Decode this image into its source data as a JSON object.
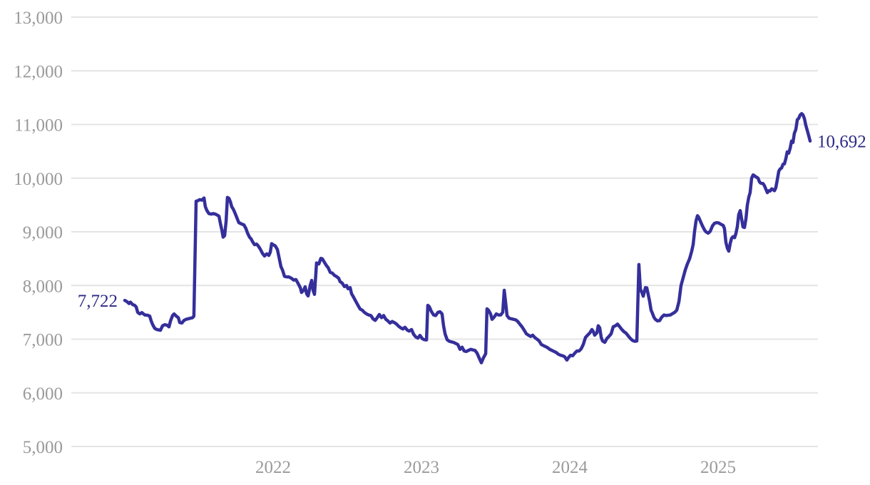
{
  "chart_data": {
    "type": "line",
    "title": "",
    "xlabel": "",
    "ylabel": "",
    "grid": true,
    "legend": "none",
    "line_color": "#352f9b",
    "annotation_color": "#2d2a86",
    "axis_text_color": "#9a9a9a",
    "gridline_color": "#e4e4e4",
    "start_label": "7,722",
    "end_label": "10,692",
    "start_value": 7722,
    "end_value": 10692,
    "y_domain": [
      5000,
      13000
    ],
    "y_ticks": [
      5000,
      6000,
      7000,
      8000,
      9000,
      10000,
      11000,
      12000,
      13000
    ],
    "y_tick_labels": [
      "5,000",
      "6,000",
      "7,000",
      "8,000",
      "9,000",
      "10,000",
      "11,000",
      "12,000",
      "13,000"
    ],
    "x_ticks": [
      2022,
      2023,
      2024,
      2025
    ],
    "x_tick_labels": [
      "2022",
      "2023",
      "2024",
      "2025"
    ],
    "x_domain": [
      2021.0,
      2025.62
    ],
    "points": [
      [
        2021.0,
        7722
      ],
      [
        2021.014,
        7700
      ],
      [
        2021.029,
        7665
      ],
      [
        2021.038,
        7690
      ],
      [
        2021.053,
        7645
      ],
      [
        2021.067,
        7630
      ],
      [
        2021.077,
        7600
      ],
      [
        2021.087,
        7500
      ],
      [
        2021.101,
        7470
      ],
      [
        2021.115,
        7495
      ],
      [
        2021.135,
        7450
      ],
      [
        2021.154,
        7445
      ],
      [
        2021.168,
        7430
      ],
      [
        2021.178,
        7340
      ],
      [
        2021.188,
        7270
      ],
      [
        2021.202,
        7200
      ],
      [
        2021.216,
        7180
      ],
      [
        2021.24,
        7165
      ],
      [
        2021.255,
        7250
      ],
      [
        2021.269,
        7270
      ],
      [
        2021.284,
        7260
      ],
      [
        2021.298,
        7230
      ],
      [
        2021.308,
        7340
      ],
      [
        2021.322,
        7440
      ],
      [
        2021.332,
        7470
      ],
      [
        2021.346,
        7430
      ],
      [
        2021.361,
        7400
      ],
      [
        2021.37,
        7310
      ],
      [
        2021.385,
        7300
      ],
      [
        2021.399,
        7350
      ],
      [
        2021.413,
        7370
      ],
      [
        2021.428,
        7380
      ],
      [
        2021.442,
        7390
      ],
      [
        2021.457,
        7400
      ],
      [
        2021.466,
        7430
      ],
      [
        2021.481,
        9570
      ],
      [
        2021.49,
        9575
      ],
      [
        2021.505,
        9600
      ],
      [
        2021.519,
        9590
      ],
      [
        2021.534,
        9630
      ],
      [
        2021.543,
        9470
      ],
      [
        2021.553,
        9400
      ],
      [
        2021.567,
        9340
      ],
      [
        2021.582,
        9330
      ],
      [
        2021.596,
        9340
      ],
      [
        2021.611,
        9330
      ],
      [
        2021.625,
        9310
      ],
      [
        2021.635,
        9290
      ],
      [
        2021.644,
        9160
      ],
      [
        2021.654,
        9040
      ],
      [
        2021.663,
        8900
      ],
      [
        2021.673,
        8930
      ],
      [
        2021.683,
        9200
      ],
      [
        2021.692,
        9640
      ],
      [
        2021.702,
        9625
      ],
      [
        2021.712,
        9560
      ],
      [
        2021.721,
        9465
      ],
      [
        2021.731,
        9425
      ],
      [
        2021.74,
        9370
      ],
      [
        2021.75,
        9300
      ],
      [
        2021.76,
        9230
      ],
      [
        2021.769,
        9170
      ],
      [
        2021.784,
        9150
      ],
      [
        2021.793,
        9140
      ],
      [
        2021.803,
        9130
      ],
      [
        2021.817,
        9060
      ],
      [
        2021.827,
        8980
      ],
      [
        2021.841,
        8900
      ],
      [
        2021.851,
        8870
      ],
      [
        2021.865,
        8800
      ],
      [
        2021.875,
        8760
      ],
      [
        2021.889,
        8770
      ],
      [
        2021.899,
        8740
      ],
      [
        2021.913,
        8680
      ],
      [
        2021.928,
        8600
      ],
      [
        2021.942,
        8550
      ],
      [
        2021.957,
        8590
      ],
      [
        2021.971,
        8560
      ],
      [
        2021.981,
        8620
      ],
      [
        2021.99,
        8780
      ],
      [
        2022.0,
        8760
      ],
      [
        2022.014,
        8740
      ],
      [
        2022.029,
        8670
      ],
      [
        2022.038,
        8550
      ],
      [
        2022.053,
        8350
      ],
      [
        2022.063,
        8290
      ],
      [
        2022.077,
        8170
      ],
      [
        2022.091,
        8160
      ],
      [
        2022.106,
        8160
      ],
      [
        2022.12,
        8140
      ],
      [
        2022.139,
        8100
      ],
      [
        2022.154,
        8110
      ],
      [
        2022.168,
        8040
      ],
      [
        2022.183,
        7960
      ],
      [
        2022.192,
        7870
      ],
      [
        2022.207,
        7920
      ],
      [
        2022.216,
        7975
      ],
      [
        2022.226,
        7845
      ],
      [
        2022.236,
        7805
      ],
      [
        2022.25,
        8000
      ],
      [
        2022.26,
        8095
      ],
      [
        2022.269,
        7910
      ],
      [
        2022.279,
        7835
      ],
      [
        2022.293,
        8420
      ],
      [
        2022.308,
        8400
      ],
      [
        2022.322,
        8505
      ],
      [
        2022.332,
        8495
      ],
      [
        2022.346,
        8430
      ],
      [
        2022.361,
        8365
      ],
      [
        2022.37,
        8335
      ],
      [
        2022.385,
        8245
      ],
      [
        2022.399,
        8230
      ],
      [
        2022.413,
        8190
      ],
      [
        2022.428,
        8165
      ],
      [
        2022.442,
        8135
      ],
      [
        2022.452,
        8070
      ],
      [
        2022.466,
        8045
      ],
      [
        2022.481,
        7980
      ],
      [
        2022.495,
        8000
      ],
      [
        2022.505,
        7940
      ],
      [
        2022.519,
        7960
      ],
      [
        2022.529,
        7845
      ],
      [
        2022.543,
        7780
      ],
      [
        2022.558,
        7700
      ],
      [
        2022.572,
        7630
      ],
      [
        2022.587,
        7560
      ],
      [
        2022.601,
        7540
      ],
      [
        2022.615,
        7500
      ],
      [
        2022.63,
        7470
      ],
      [
        2022.644,
        7450
      ],
      [
        2022.659,
        7440
      ],
      [
        2022.673,
        7380
      ],
      [
        2022.688,
        7350
      ],
      [
        2022.702,
        7400
      ],
      [
        2022.716,
        7460
      ],
      [
        2022.731,
        7400
      ],
      [
        2022.745,
        7440
      ],
      [
        2022.76,
        7370
      ],
      [
        2022.774,
        7340
      ],
      [
        2022.788,
        7300
      ],
      [
        2022.803,
        7330
      ],
      [
        2022.817,
        7310
      ],
      [
        2022.832,
        7280
      ],
      [
        2022.846,
        7240
      ],
      [
        2022.861,
        7210
      ],
      [
        2022.875,
        7190
      ],
      [
        2022.889,
        7220
      ],
      [
        2022.904,
        7170
      ],
      [
        2022.918,
        7150
      ],
      [
        2022.933,
        7180
      ],
      [
        2022.947,
        7090
      ],
      [
        2022.962,
        7040
      ],
      [
        2022.976,
        7020
      ],
      [
        2022.99,
        7070
      ],
      [
        2023.005,
        7010
      ],
      [
        2023.019,
        6990
      ],
      [
        2023.034,
        6985
      ],
      [
        2023.043,
        7630
      ],
      [
        2023.053,
        7605
      ],
      [
        2023.067,
        7515
      ],
      [
        2023.082,
        7450
      ],
      [
        2023.096,
        7440
      ],
      [
        2023.111,
        7500
      ],
      [
        2023.125,
        7510
      ],
      [
        2023.139,
        7470
      ],
      [
        2023.149,
        7250
      ],
      [
        2023.159,
        7100
      ],
      [
        2023.173,
        6990
      ],
      [
        2023.188,
        6960
      ],
      [
        2023.202,
        6950
      ],
      [
        2023.216,
        6940
      ],
      [
        2023.231,
        6920
      ],
      [
        2023.245,
        6900
      ],
      [
        2023.26,
        6810
      ],
      [
        2023.274,
        6850
      ],
      [
        2023.288,
        6780
      ],
      [
        2023.303,
        6770
      ],
      [
        2023.317,
        6790
      ],
      [
        2023.332,
        6810
      ],
      [
        2023.346,
        6800
      ],
      [
        2023.361,
        6790
      ],
      [
        2023.375,
        6740
      ],
      [
        2023.389,
        6650
      ],
      [
        2023.404,
        6560
      ],
      [
        2023.418,
        6650
      ],
      [
        2023.433,
        6730
      ],
      [
        2023.442,
        7565
      ],
      [
        2023.452,
        7540
      ],
      [
        2023.466,
        7470
      ],
      [
        2023.476,
        7370
      ],
      [
        2023.49,
        7410
      ],
      [
        2023.505,
        7470
      ],
      [
        2023.519,
        7450
      ],
      [
        2023.534,
        7450
      ],
      [
        2023.548,
        7500
      ],
      [
        2023.558,
        7910
      ],
      [
        2023.567,
        7700
      ],
      [
        2023.577,
        7440
      ],
      [
        2023.591,
        7390
      ],
      [
        2023.606,
        7380
      ],
      [
        2023.62,
        7370
      ],
      [
        2023.635,
        7360
      ],
      [
        2023.649,
        7330
      ],
      [
        2023.663,
        7280
      ],
      [
        2023.678,
        7230
      ],
      [
        2023.692,
        7170
      ],
      [
        2023.707,
        7100
      ],
      [
        2023.721,
        7075
      ],
      [
        2023.736,
        7050
      ],
      [
        2023.75,
        7075
      ],
      [
        2023.764,
        7030
      ],
      [
        2023.779,
        7000
      ],
      [
        2023.793,
        6970
      ],
      [
        2023.808,
        6900
      ],
      [
        2023.822,
        6880
      ],
      [
        2023.837,
        6860
      ],
      [
        2023.851,
        6840
      ],
      [
        2023.865,
        6810
      ],
      [
        2023.88,
        6790
      ],
      [
        2023.894,
        6770
      ],
      [
        2023.909,
        6750
      ],
      [
        2023.923,
        6720
      ],
      [
        2023.938,
        6700
      ],
      [
        2023.952,
        6690
      ],
      [
        2023.966,
        6670
      ],
      [
        2023.981,
        6610
      ],
      [
        2023.99,
        6650
      ],
      [
        2024.005,
        6700
      ],
      [
        2024.019,
        6690
      ],
      [
        2024.034,
        6740
      ],
      [
        2024.048,
        6780
      ],
      [
        2024.063,
        6780
      ],
      [
        2024.077,
        6820
      ],
      [
        2024.091,
        6900
      ],
      [
        2024.106,
        7030
      ],
      [
        2024.12,
        7075
      ],
      [
        2024.135,
        7115
      ],
      [
        2024.149,
        7180
      ],
      [
        2024.159,
        7140
      ],
      [
        2024.168,
        7075
      ],
      [
        2024.183,
        7120
      ],
      [
        2024.192,
        7250
      ],
      [
        2024.202,
        7210
      ],
      [
        2024.212,
        7030
      ],
      [
        2024.221,
        6965
      ],
      [
        2024.236,
        6940
      ],
      [
        2024.25,
        7010
      ],
      [
        2024.264,
        7050
      ],
      [
        2024.279,
        7100
      ],
      [
        2024.293,
        7230
      ],
      [
        2024.308,
        7250
      ],
      [
        2024.322,
        7280
      ],
      [
        2024.337,
        7230
      ],
      [
        2024.351,
        7180
      ],
      [
        2024.365,
        7140
      ],
      [
        2024.38,
        7110
      ],
      [
        2024.394,
        7060
      ],
      [
        2024.409,
        7010
      ],
      [
        2024.423,
        6975
      ],
      [
        2024.438,
        6960
      ],
      [
        2024.452,
        6965
      ],
      [
        2024.466,
        8390
      ],
      [
        2024.476,
        7930
      ],
      [
        2024.486,
        7870
      ],
      [
        2024.495,
        7800
      ],
      [
        2024.51,
        7960
      ],
      [
        2024.519,
        7955
      ],
      [
        2024.529,
        7830
      ],
      [
        2024.538,
        7710
      ],
      [
        2024.548,
        7540
      ],
      [
        2024.558,
        7475
      ],
      [
        2024.567,
        7410
      ],
      [
        2024.577,
        7370
      ],
      [
        2024.591,
        7340
      ],
      [
        2024.606,
        7345
      ],
      [
        2024.62,
        7410
      ],
      [
        2024.635,
        7450
      ],
      [
        2024.649,
        7440
      ],
      [
        2024.663,
        7445
      ],
      [
        2024.678,
        7450
      ],
      [
        2024.692,
        7475
      ],
      [
        2024.707,
        7500
      ],
      [
        2024.721,
        7540
      ],
      [
        2024.736,
        7700
      ],
      [
        2024.75,
        8000
      ],
      [
        2024.764,
        8140
      ],
      [
        2024.779,
        8290
      ],
      [
        2024.793,
        8400
      ],
      [
        2024.808,
        8500
      ],
      [
        2024.822,
        8640
      ],
      [
        2024.832,
        8770
      ],
      [
        2024.841,
        9000
      ],
      [
        2024.851,
        9200
      ],
      [
        2024.861,
        9300
      ],
      [
        2024.87,
        9265
      ],
      [
        2024.88,
        9200
      ],
      [
        2024.894,
        9110
      ],
      [
        2024.909,
        9030
      ],
      [
        2024.918,
        9000
      ],
      [
        2024.933,
        8975
      ],
      [
        2024.947,
        9010
      ],
      [
        2024.962,
        9110
      ],
      [
        2024.976,
        9160
      ],
      [
        2024.99,
        9170
      ],
      [
        2025.005,
        9165
      ],
      [
        2025.019,
        9140
      ],
      [
        2025.034,
        9120
      ],
      [
        2025.043,
        9060
      ],
      [
        2025.053,
        8800
      ],
      [
        2025.063,
        8690
      ],
      [
        2025.072,
        8640
      ],
      [
        2025.082,
        8790
      ],
      [
        2025.091,
        8880
      ],
      [
        2025.101,
        8910
      ],
      [
        2025.111,
        8890
      ],
      [
        2025.12,
        8970
      ],
      [
        2025.13,
        9100
      ],
      [
        2025.139,
        9320
      ],
      [
        2025.149,
        9395
      ],
      [
        2025.159,
        9230
      ],
      [
        2025.168,
        9090
      ],
      [
        2025.178,
        9080
      ],
      [
        2025.188,
        9250
      ],
      [
        2025.197,
        9500
      ],
      [
        2025.207,
        9650
      ],
      [
        2025.216,
        9730
      ],
      [
        2025.226,
        10000
      ],
      [
        2025.236,
        10060
      ],
      [
        2025.245,
        10045
      ],
      [
        2025.255,
        10025
      ],
      [
        2025.269,
        10000
      ],
      [
        2025.279,
        9930
      ],
      [
        2025.288,
        9905
      ],
      [
        2025.303,
        9900
      ],
      [
        2025.312,
        9860
      ],
      [
        2025.322,
        9795
      ],
      [
        2025.332,
        9730
      ],
      [
        2025.341,
        9765
      ],
      [
        2025.351,
        9760
      ],
      [
        2025.361,
        9800
      ],
      [
        2025.37,
        9790
      ],
      [
        2025.38,
        9765
      ],
      [
        2025.389,
        9820
      ],
      [
        2025.399,
        9970
      ],
      [
        2025.409,
        10130
      ],
      [
        2025.418,
        10170
      ],
      [
        2025.428,
        10190
      ],
      [
        2025.438,
        10260
      ],
      [
        2025.447,
        10265
      ],
      [
        2025.457,
        10370
      ],
      [
        2025.466,
        10490
      ],
      [
        2025.476,
        10465
      ],
      [
        2025.486,
        10560
      ],
      [
        2025.495,
        10690
      ],
      [
        2025.505,
        10665
      ],
      [
        2025.514,
        10835
      ],
      [
        2025.524,
        10905
      ],
      [
        2025.534,
        11090
      ],
      [
        2025.543,
        11110
      ],
      [
        2025.553,
        11175
      ],
      [
        2025.563,
        11200
      ],
      [
        2025.572,
        11180
      ],
      [
        2025.582,
        11105
      ],
      [
        2025.591,
        10990
      ],
      [
        2025.601,
        10890
      ],
      [
        2025.611,
        10790
      ],
      [
        2025.62,
        10692
      ]
    ]
  }
}
